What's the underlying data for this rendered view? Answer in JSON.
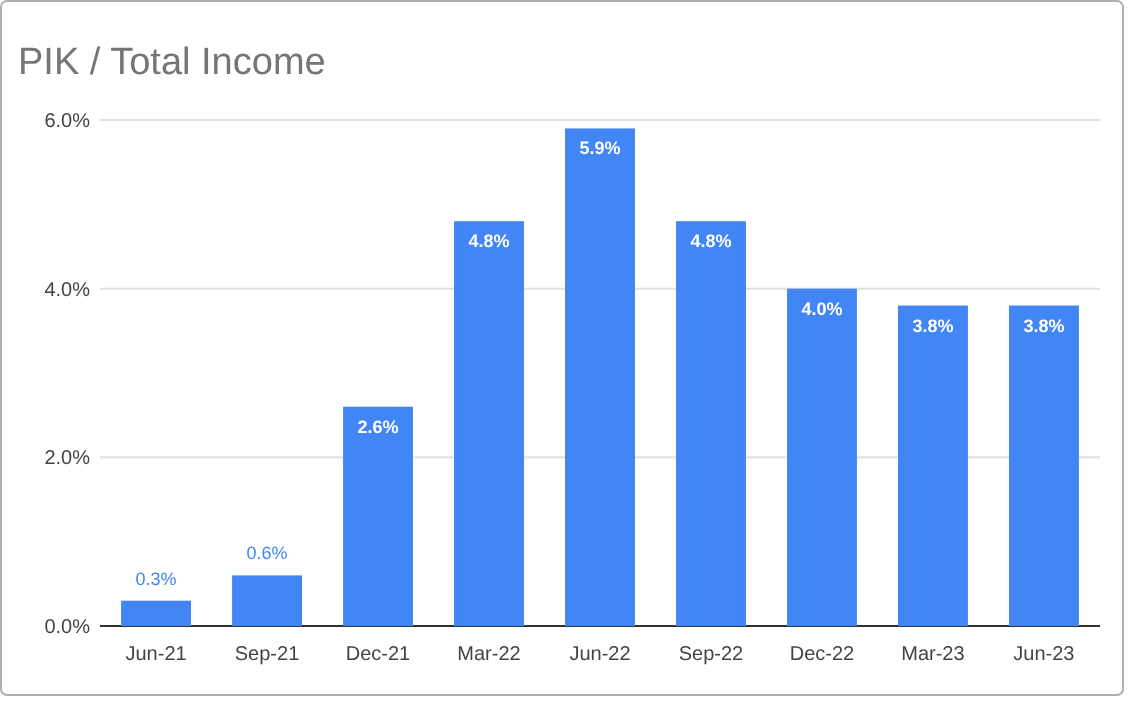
{
  "chart_data": {
    "type": "bar",
    "title": "PIK / Total Income",
    "categories": [
      "Jun-21",
      "Sep-21",
      "Dec-21",
      "Mar-22",
      "Jun-22",
      "Sep-22",
      "Dec-22",
      "Mar-23",
      "Jun-23"
    ],
    "values": [
      0.3,
      0.6,
      2.6,
      4.8,
      5.9,
      4.8,
      4.0,
      3.8,
      3.8
    ],
    "value_labels": [
      "0.3%",
      "0.6%",
      "2.6%",
      "4.8%",
      "5.9%",
      "4.8%",
      "4.0%",
      "3.8%",
      "3.8%"
    ],
    "color": "#4285f4",
    "ylim": [
      0,
      6
    ],
    "yticks": [
      {
        "value": 0,
        "label": "0.0%"
      },
      {
        "value": 2,
        "label": "2.0%"
      },
      {
        "value": 4,
        "label": "4.0%"
      },
      {
        "value": 6,
        "label": "6.0%"
      }
    ],
    "grid": "y"
  }
}
